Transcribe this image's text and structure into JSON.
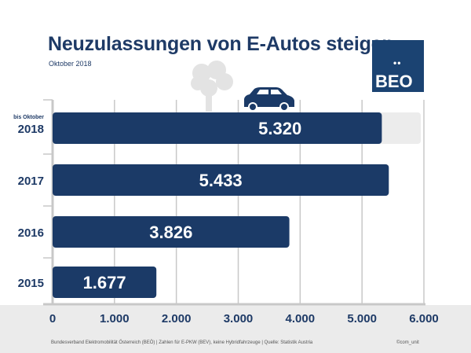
{
  "header": {
    "title": "Neuzulassungen von E-Autos steigen",
    "subtitle": "Oktober 2018"
  },
  "logo": {
    "dots": "••",
    "text": "BEO",
    "color": "#1b4372"
  },
  "footer": {
    "source": "Bundesverband Elektromobilität Österreich (BEÖ) | Zahlen für E-PKW (BEV), keine Hybridfahrzeuge | Quelle: Statistik Austria",
    "credit": "©com_unit"
  },
  "icons": [
    "tree-icon",
    "car-icon"
  ],
  "chart_data": {
    "type": "bar",
    "orientation": "horizontal",
    "title": "Neuzulassungen von E-Autos steigen",
    "subtitle": "Oktober 2018",
    "categories": [
      "2018",
      "2017",
      "2016",
      "2015"
    ],
    "category_notes": {
      "2018": "bis Oktober"
    },
    "values": [
      5320,
      5433,
      3826,
      1677
    ],
    "value_labels": [
      "5.320",
      "5.433",
      "3.826",
      "1.677"
    ],
    "projected_extension": {
      "category": "2018",
      "value": 5950
    },
    "xlim": [
      0,
      6000
    ],
    "xticks": [
      0,
      1000,
      2000,
      3000,
      4000,
      5000,
      6000
    ],
    "xtick_labels": [
      "0",
      "1.000",
      "2.000",
      "3.000",
      "4.000",
      "5.000",
      "6.000"
    ],
    "grid": true,
    "bar_color": "#1b3a67",
    "extension_color": "#ececec",
    "xlabel": "",
    "ylabel": ""
  }
}
